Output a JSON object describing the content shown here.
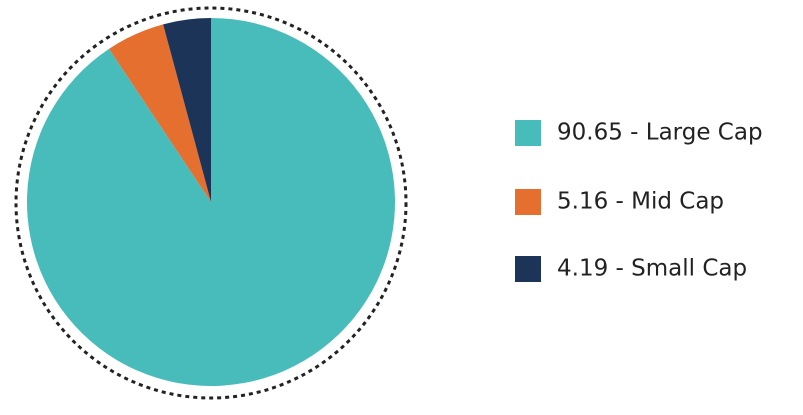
{
  "chart_data": {
    "type": "pie",
    "categories": [
      "90.65 - Large Cap",
      "5.16 - Mid Cap",
      "4.19 - Small Cap"
    ],
    "values": [
      90.65,
      5.16,
      4.19
    ],
    "colors": [
      "#47bcbb",
      "#e46f2f",
      "#1d3459"
    ],
    "legend": "right"
  }
}
